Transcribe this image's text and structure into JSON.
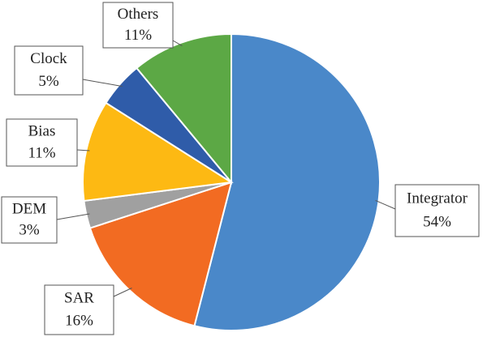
{
  "chart_data": {
    "type": "pie",
    "categories": [
      "Integrator",
      "SAR",
      "DEM",
      "Bias",
      "Clock",
      "Others"
    ],
    "values": [
      54,
      16,
      3,
      11,
      5,
      11
    ],
    "value_labels": [
      "54%",
      "16%",
      "3%",
      "11%",
      "5%",
      "11%"
    ],
    "colors": [
      "#4a88c9",
      "#f26b22",
      "#a0a0a0",
      "#fdb913",
      "#2f5ca9",
      "#5ca845"
    ]
  }
}
